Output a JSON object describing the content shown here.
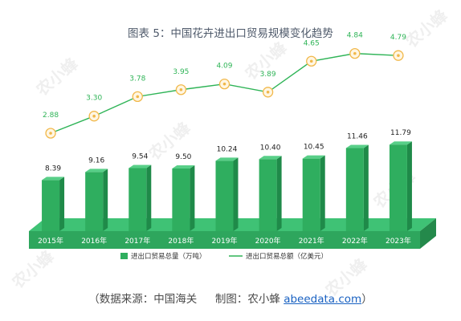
{
  "title": "图表 5：中国花卉进出口贸易规模变化趋势",
  "source": {
    "prefix": "（数据来源：中国海关",
    "maker": "制图：农小蜂",
    "link": "abeedata.com",
    "suffix": "）"
  },
  "watermark": "农小蜂",
  "chart_data": {
    "type": "bar+line",
    "categories": [
      "2015年",
      "2016年",
      "2017年",
      "2018年",
      "2019年",
      "2020年",
      "2021年",
      "2022年",
      "2023年"
    ],
    "series": [
      {
        "name": "进出口贸易总量（万吨）",
        "type": "bar",
        "values": [
          8.39,
          9.16,
          9.54,
          9.5,
          10.24,
          10.4,
          10.45,
          11.46,
          11.79
        ],
        "labels": [
          "8.39",
          "9.16",
          "9.54",
          "9.50",
          "10.24",
          "10.40",
          "10.45",
          "11.46",
          "11.79"
        ],
        "color": "#2fae5f"
      },
      {
        "name": "进出口贸易总额（亿美元）",
        "type": "line",
        "values": [
          2.88,
          3.3,
          3.78,
          3.95,
          4.09,
          3.89,
          4.65,
          4.84,
          4.79
        ],
        "labels": [
          "2.88",
          "3.30",
          "3.78",
          "3.95",
          "4.09",
          "3.89",
          "4.65",
          "4.84",
          "4.79"
        ],
        "color": "#2fb457",
        "marker_color": "#f1b84a"
      }
    ],
    "legend_position": "bottom"
  }
}
